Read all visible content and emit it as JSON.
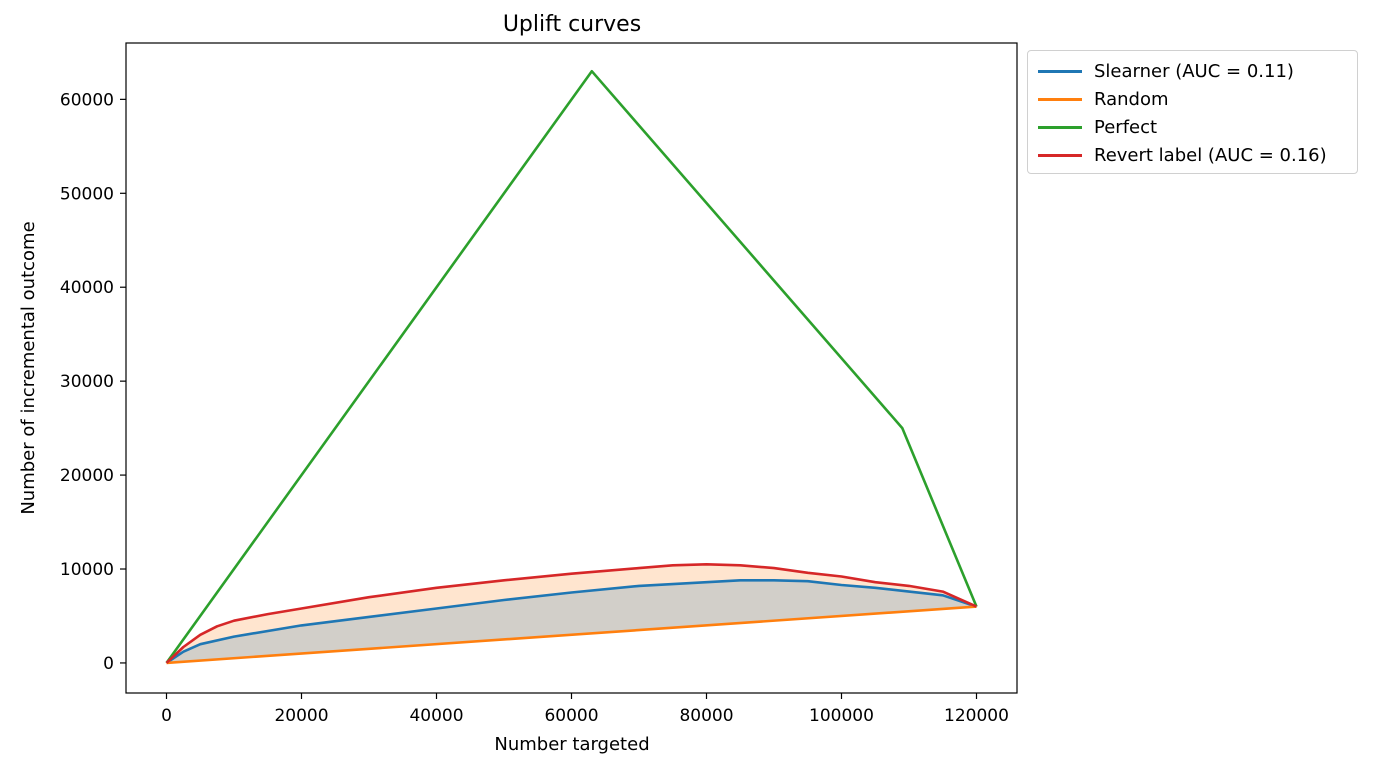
{
  "chart_data": {
    "type": "line",
    "title": "Uplift curves",
    "xlabel": "Number targeted",
    "ylabel": "Number of incremental outcome",
    "xlim": [
      -6000,
      126000
    ],
    "ylim": [
      -3200,
      66000
    ],
    "xticks": [
      "0",
      "20000",
      "40000",
      "60000",
      "80000",
      "100000",
      "120000"
    ],
    "yticks": [
      "0",
      "10000",
      "20000",
      "30000",
      "40000",
      "50000",
      "60000"
    ],
    "grid": false,
    "legend_position": "outside top-right",
    "series": [
      {
        "name": "Slearner (AUC = 0.11)",
        "color": "#1f77b4",
        "fill_to_random": true,
        "fill_color": "#1f77b4",
        "x": [
          0,
          2500,
          5000,
          10000,
          20000,
          30000,
          40000,
          50000,
          60000,
          70000,
          80000,
          85000,
          90000,
          95000,
          100000,
          105000,
          110000,
          115000,
          120000
        ],
        "y": [
          0,
          1200,
          2000,
          2800,
          4000,
          4900,
          5800,
          6700,
          7500,
          8200,
          8600,
          8800,
          8800,
          8700,
          8300,
          8000,
          7600,
          7200,
          6000
        ]
      },
      {
        "name": "Random",
        "color": "#ff7f0e",
        "x": [
          0,
          120000
        ],
        "y": [
          0,
          6000
        ]
      },
      {
        "name": "Perfect",
        "color": "#2ca02c",
        "x": [
          0,
          63000,
          109000,
          120000
        ],
        "y": [
          0,
          63000,
          25000,
          6000
        ]
      },
      {
        "name": "Revert label (AUC = 0.16)",
        "color": "#d62728",
        "fill_to_random": true,
        "fill_color": "#ff7f0e",
        "x": [
          0,
          2500,
          5000,
          7500,
          10000,
          15000,
          20000,
          30000,
          40000,
          50000,
          60000,
          70000,
          75000,
          80000,
          85000,
          90000,
          95000,
          100000,
          105000,
          110000,
          115000,
          120000
        ],
        "y": [
          0,
          1700,
          3000,
          3900,
          4500,
          5200,
          5800,
          7000,
          8000,
          8800,
          9500,
          10100,
          10400,
          10500,
          10400,
          10100,
          9600,
          9200,
          8600,
          8200,
          7600,
          6000
        ]
      }
    ]
  }
}
